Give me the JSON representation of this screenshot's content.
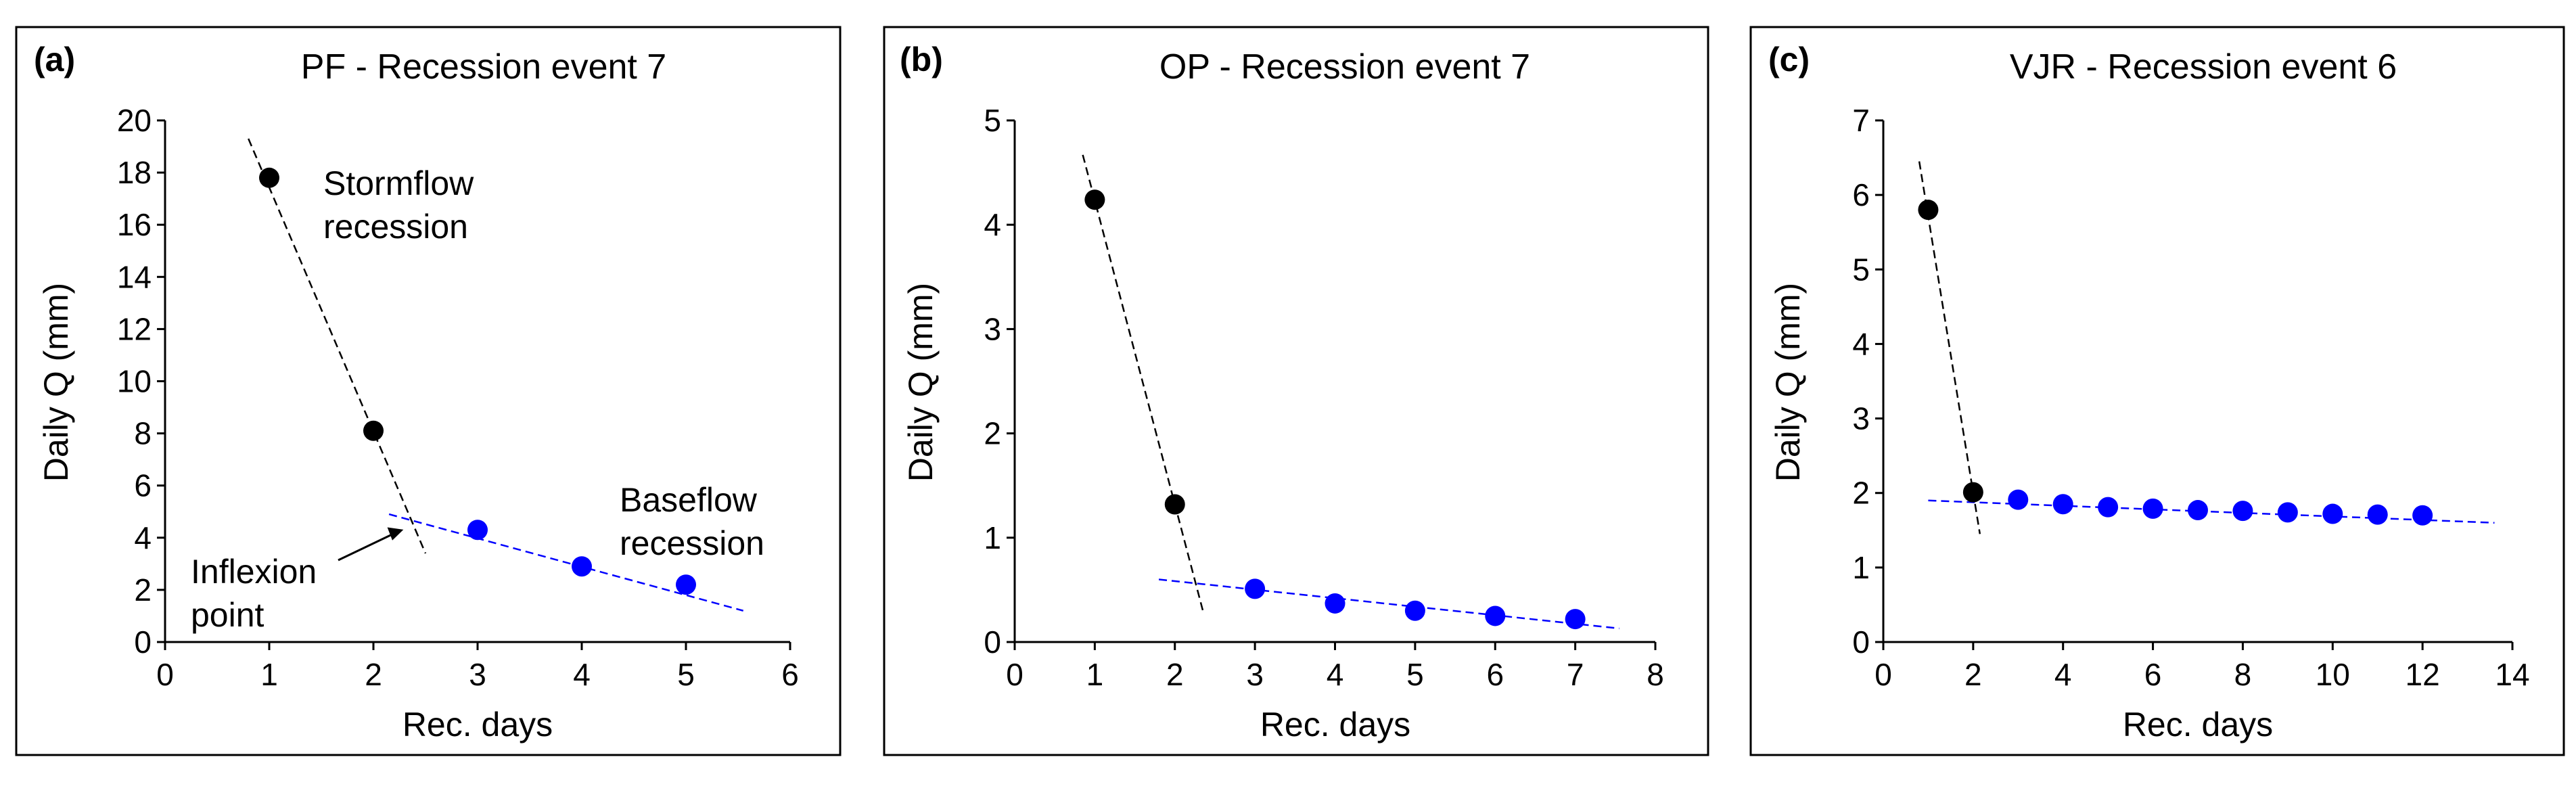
{
  "figure": {
    "panels_count": 3
  },
  "chart_data": [
    {
      "type": "scatter",
      "panel_label": "(a)",
      "title": "PF - Recession event 7",
      "xlabel": "Rec. days",
      "ylabel": "Daily Q (mm)",
      "xlim": [
        0,
        6
      ],
      "ylim": [
        0,
        20
      ],
      "xticks": [
        0,
        1,
        2,
        3,
        4,
        5,
        6
      ],
      "yticks": [
        0,
        2,
        4,
        6,
        8,
        10,
        12,
        14,
        16,
        18,
        20
      ],
      "grid": false,
      "series": [
        {
          "name": "Stormflow recession",
          "color": "#000000",
          "x": [
            1,
            2
          ],
          "y": [
            17.8,
            8.1
          ]
        },
        {
          "name": "Baseflow recession",
          "color": "#0000ff",
          "x": [
            3,
            4,
            5
          ],
          "y": [
            4.3,
            2.9,
            2.2
          ]
        }
      ],
      "trendlines": [
        {
          "color": "#000000",
          "x": [
            0.8,
            2.5
          ],
          "y": [
            19.3,
            3.4
          ]
        },
        {
          "color": "#0000ff",
          "x": [
            2.15,
            5.55
          ],
          "y": [
            4.9,
            1.2
          ]
        }
      ],
      "annotations": {
        "stormflow_line1": "Stormflow",
        "stormflow_line2": "recession",
        "baseflow_line1": "Baseflow",
        "baseflow_line2": "recession",
        "inflexion_line1": "Inflexion",
        "inflexion_line2": "point"
      }
    },
    {
      "type": "scatter",
      "panel_label": "(b)",
      "title": "OP - Recession event 7",
      "xlabel": "Rec. days",
      "ylabel": "Daily Q (mm)",
      "xlim": [
        0,
        8
      ],
      "ylim": [
        0,
        5
      ],
      "xticks": [
        0,
        1,
        2,
        3,
        4,
        5,
        6,
        7,
        8
      ],
      "yticks": [
        0,
        1,
        2,
        3,
        4,
        5
      ],
      "grid": false,
      "series": [
        {
          "name": "Stormflow recession",
          "color": "#000000",
          "x": [
            1,
            2
          ],
          "y": [
            4.24,
            1.32
          ]
        },
        {
          "name": "Baseflow recession",
          "color": "#0000ff",
          "x": [
            3,
            4,
            5,
            6,
            7
          ],
          "y": [
            0.51,
            0.37,
            0.3,
            0.25,
            0.22
          ]
        }
      ],
      "trendlines": [
        {
          "color": "#000000",
          "x": [
            0.85,
            2.35
          ],
          "y": [
            4.67,
            0.3
          ]
        },
        {
          "color": "#0000ff",
          "x": [
            1.8,
            7.55
          ],
          "y": [
            0.6,
            0.13
          ]
        }
      ]
    },
    {
      "type": "scatter",
      "panel_label": "(c)",
      "title": "VJR - Recession event 6",
      "xlabel": "Rec. days",
      "ylabel": "Daily Q (mm)",
      "xlim": [
        0,
        14
      ],
      "ylim": [
        0,
        7
      ],
      "xticks": [
        0,
        2,
        4,
        6,
        8,
        10,
        12,
        14
      ],
      "yticks": [
        0,
        1,
        2,
        3,
        4,
        5,
        6,
        7
      ],
      "grid": false,
      "series": [
        {
          "name": "Stormflow recession",
          "color": "#000000",
          "x": [
            1,
            2
          ],
          "y": [
            5.8,
            2.01
          ]
        },
        {
          "name": "Baseflow recession",
          "color": "#0000ff",
          "x": [
            3,
            4,
            5,
            6,
            7,
            8,
            9,
            10,
            11,
            12
          ],
          "y": [
            1.91,
            1.85,
            1.81,
            1.79,
            1.77,
            1.76,
            1.74,
            1.72,
            1.71,
            1.7
          ]
        }
      ],
      "trendlines": [
        {
          "color": "#000000",
          "x": [
            0.8,
            2.15
          ],
          "y": [
            6.45,
            1.45
          ]
        },
        {
          "color": "#0000ff",
          "x": [
            1.0,
            13.6
          ],
          "y": [
            1.9,
            1.6
          ]
        }
      ]
    }
  ]
}
